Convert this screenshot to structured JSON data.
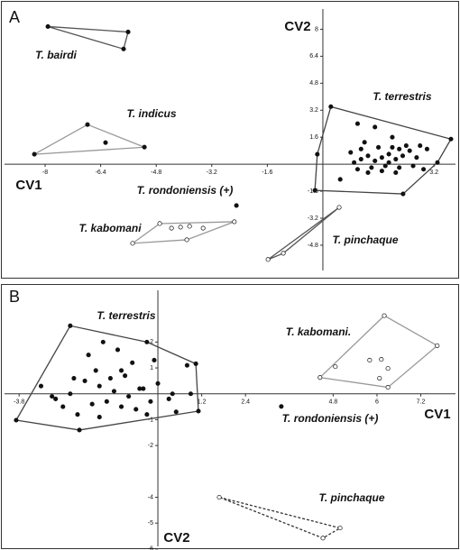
{
  "chart_data": [
    {
      "type": "scatter",
      "panel": "A",
      "x_label": "CV1",
      "y_label": "CV2",
      "xlim": [
        -9.17,
        3.82
      ],
      "ylim": [
        -6.3,
        9.2
      ],
      "xticks": [
        -8,
        -6.4,
        -4.8,
        -3.2,
        -1.6,
        3.2
      ],
      "yticks": [
        8,
        6.4,
        4.8,
        3.2,
        1.6,
        -1.6,
        -3.2,
        -4.8
      ],
      "series": [
        {
          "name": "T. bairdi",
          "color": "#555555",
          "marker": "filled",
          "x": [
            -7.92,
            -5.61,
            -5.74
          ],
          "y": [
            8.16,
            7.84,
            6.83
          ]
        },
        {
          "name": "T. indicus",
          "color": "#999999",
          "marker": "filled",
          "x": [
            -8.31,
            -6.78,
            -5.14,
            -6.26
          ],
          "y": [
            0.59,
            2.35,
            1.01,
            1.28
          ]
        },
        {
          "name": "T. terrestris",
          "color": "#444444",
          "marker": "filled",
          "x": [
            0.23,
            3.69,
            2.31,
            -0.23,
            -0.16,
            0.9,
            1.1,
            1.3,
            1.5,
            1.7,
            1.9,
            2.1,
            2.3,
            2.5,
            2.7,
            1.0,
            1.4,
            1.8,
            2.2,
            2.6,
            3.0,
            2.8,
            2.4,
            2.0,
            1.6,
            1.2,
            1.0,
            1.5,
            2.9,
            1.3,
            1.7,
            2.1,
            1.9,
            2.2,
            0.8,
            0.5,
            3.3,
            2.0,
            1.1
          ],
          "y": [
            3.41,
            1.49,
            -1.76,
            -1.55,
            0.59,
            0.1,
            0.3,
            0.5,
            0.2,
            0.4,
            0.6,
            0.3,
            0.5,
            0.8,
            0.4,
            -0.3,
            -0.2,
            -0.1,
            -0.2,
            -0.1,
            0.9,
            1.1,
            1.1,
            1.0,
            1.0,
            1.3,
            2.4,
            2.2,
            -0.3,
            -0.5,
            -0.4,
            -0.5,
            0.1,
            0.9,
            0.7,
            -0.9,
            0.1,
            1.6,
            0.9
          ]
        },
        {
          "name": "T. rondoniensis (+)",
          "color": "#333333",
          "marker": "filled",
          "x": [
            -2.49
          ],
          "y": [
            -2.45
          ]
        },
        {
          "name": "T. kabomani",
          "color": "#999999",
          "marker": "open",
          "x": [
            -5.48,
            -4.7,
            -2.55,
            -3.92,
            -4.36,
            -4.1,
            -3.84,
            -3.45
          ],
          "y": [
            -4.69,
            -3.52,
            -3.41,
            -4.48,
            -3.79,
            -3.73,
            -3.68,
            -3.79
          ]
        },
        {
          "name": "T. pinchaque",
          "color": "#555555",
          "marker": "open",
          "x": [
            -1.58,
            0.47,
            -1.14
          ],
          "y": [
            -5.65,
            -2.56,
            -5.28
          ]
        }
      ]
    },
    {
      "type": "scatter",
      "panel": "B",
      "x_label": "CV1",
      "y_label": "CV2",
      "xlim": [
        -4.2,
        8.15
      ],
      "ylim": [
        -5.9,
        4.0
      ],
      "xticks": [
        -3.8,
        1.2,
        2.4,
        4.8,
        6,
        7.2
      ],
      "yticks": [
        2,
        1,
        -1,
        -2,
        -4,
        -5,
        -6
      ],
      "series": [
        {
          "name": "T. terrestris",
          "color": "#444444",
          "marker": "filled",
          "x": [
            -2.4,
            1.04,
            1.11,
            -2.15,
            -3.88,
            -2.0,
            -1.6,
            -1.2,
            -0.8,
            -0.4,
            0.0,
            0.4,
            0.8,
            -2.8,
            -2.4,
            -1.8,
            -1.4,
            -1.0,
            -0.6,
            -0.2,
            0.3,
            -3.2,
            -2.6,
            -2.2,
            -1.7,
            -1.3,
            -0.9,
            -0.5,
            -0.1,
            -1.9,
            -1.5,
            -1.1,
            -0.7,
            0.5,
            -2.3,
            -1.6,
            -0.3,
            -1.0,
            -0.3,
            0.9,
            -2.9
          ],
          "y": [
            2.63,
            1.16,
            -0.67,
            -1.4,
            -1.02,
            0.5,
            0.3,
            0.1,
            -0.1,
            0.2,
            0.4,
            0.0,
            1.1,
            -0.2,
            0.0,
            -0.4,
            -0.3,
            -0.5,
            -0.6,
            -0.3,
            -0.2,
            0.3,
            -0.5,
            -0.8,
            0.9,
            0.6,
            0.7,
            0.2,
            1.3,
            1.5,
            2.0,
            1.7,
            1.2,
            -0.7,
            0.6,
            -0.9,
            -0.8,
            0.9,
            2.0,
            0.0,
            -0.1
          ]
        },
        {
          "name": "T. kabomani.",
          "color": "#999999",
          "marker": "open",
          "x": [
            6.2,
            7.65,
            6.3,
            4.44,
            4.86,
            5.8,
            6.12,
            6.3,
            6.07
          ],
          "y": [
            3.02,
            1.86,
            0.25,
            0.63,
            1.05,
            1.3,
            1.33,
            0.98,
            0.6
          ]
        },
        {
          "name": "T. rondoniensis (+)",
          "color": "#333333",
          "marker": "filled",
          "x": [
            3.38
          ],
          "y": [
            -0.49
          ]
        },
        {
          "name": "T. pinchaque",
          "color": "#333333",
          "marker": "open",
          "line_style": "dashed",
          "x": [
            1.68,
            4.99,
            4.52
          ],
          "y": [
            -4.0,
            -5.19,
            -5.58
          ]
        }
      ]
    }
  ]
}
